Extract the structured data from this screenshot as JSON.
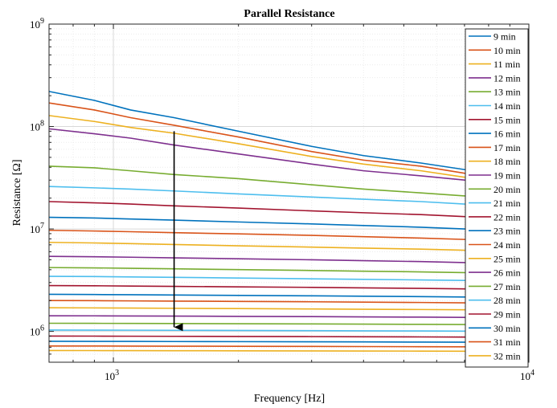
{
  "chart_data": {
    "type": "line",
    "title": "Parallel Resistance",
    "xlabel": "Frequency [Hz]",
    "ylabel": "Resistance [Ω]",
    "x_scale": "log",
    "y_scale": "log",
    "xlim": [
      700,
      10000
    ],
    "ylim": [
      500000,
      1000000000
    ],
    "grid": true,
    "legend_position": "right",
    "x_ticks": [
      {
        "value": 1000,
        "base": "10",
        "exp": "3"
      },
      {
        "value": 10000,
        "base": "10",
        "exp": "4"
      }
    ],
    "y_ticks": [
      {
        "value": 1000000,
        "base": "10",
        "exp": "6"
      },
      {
        "value": 10000000,
        "base": "10",
        "exp": "7"
      },
      {
        "value": 100000000,
        "base": "10",
        "exp": "8"
      },
      {
        "value": 1000000000,
        "base": "10",
        "exp": "9"
      }
    ],
    "x": [
      700,
      900,
      1100,
      1400,
      2000,
      3000,
      4000,
      5500,
      7000,
      10000
    ],
    "series": [
      {
        "name": "9 min",
        "color": "#0072BD",
        "values": [
          220000000,
          180000000,
          145000000,
          122000000,
          90000000,
          64000000,
          52000000,
          44000000,
          38000000,
          32000000
        ]
      },
      {
        "name": "10 min",
        "color": "#D95319",
        "values": [
          170000000,
          145000000,
          122000000,
          103000000,
          79000000,
          57000000,
          47000000,
          41000000,
          35000000,
          30000000
        ]
      },
      {
        "name": "11 min",
        "color": "#EDB120",
        "values": [
          128000000,
          112000000,
          98000000,
          86000000,
          68000000,
          51000000,
          43000000,
          37000000,
          32000000,
          28000000
        ]
      },
      {
        "name": "12 min",
        "color": "#7E2F8E",
        "values": [
          95000000,
          85000000,
          77000000,
          66000000,
          54000000,
          43000000,
          37000000,
          33000000,
          30000000,
          27000000
        ]
      },
      {
        "name": "13 min",
        "color": "#77AC30",
        "values": [
          41000000,
          39500000,
          37000000,
          34000000,
          31000000,
          27000000,
          24500000,
          22500000,
          21000000,
          19000000
        ]
      },
      {
        "name": "14 min",
        "color": "#4DBEEE",
        "values": [
          26000000,
          25200000,
          24500000,
          23500000,
          22000000,
          20500000,
          19500000,
          18500000,
          17500000,
          16500000
        ]
      },
      {
        "name": "15 min",
        "color": "#A2142F",
        "values": [
          18500000,
          18000000,
          17500000,
          16800000,
          16000000,
          15000000,
          14400000,
          13800000,
          13200000,
          12500000
        ]
      },
      {
        "name": "16 min",
        "color": "#0072BD",
        "values": [
          13000000,
          12800000,
          12500000,
          12200000,
          11700000,
          11200000,
          10800000,
          10400000,
          10000000,
          9600000
        ]
      },
      {
        "name": "17 min",
        "color": "#D95319",
        "values": [
          9700000,
          9550000,
          9400000,
          9200000,
          8950000,
          8650000,
          8400000,
          8150000,
          7900000,
          7600000
        ]
      },
      {
        "name": "18 min",
        "color": "#EDB120",
        "values": [
          7400000,
          7300000,
          7200000,
          7050000,
          6850000,
          6650000,
          6500000,
          6350000,
          6200000,
          6000000
        ]
      },
      {
        "name": "19 min",
        "color": "#7E2F8E",
        "values": [
          5400000,
          5350000,
          5300000,
          5220000,
          5120000,
          5000000,
          4900000,
          4800000,
          4700000,
          4550000
        ]
      },
      {
        "name": "20 min",
        "color": "#77AC30",
        "values": [
          4200000,
          4170000,
          4130000,
          4080000,
          4010000,
          3930000,
          3870000,
          3810000,
          3750000,
          3650000
        ]
      },
      {
        "name": "21 min",
        "color": "#4DBEEE",
        "values": [
          3450000,
          3430000,
          3400000,
          3370000,
          3320000,
          3260000,
          3220000,
          3180000,
          3140000,
          3080000
        ]
      },
      {
        "name": "22 min",
        "color": "#A2142F",
        "values": [
          2800000,
          2790000,
          2770000,
          2750000,
          2720000,
          2690000,
          2660000,
          2630000,
          2600000,
          2560000
        ]
      },
      {
        "name": "23 min",
        "color": "#0072BD",
        "values": [
          2300000,
          2290000,
          2280000,
          2265000,
          2245000,
          2225000,
          2205000,
          2185000,
          2165000,
          2140000
        ]
      },
      {
        "name": "24 min",
        "color": "#D95319",
        "values": [
          2000000,
          1995000,
          1985000,
          1975000,
          1960000,
          1945000,
          1930000,
          1915000,
          1900000,
          1880000
        ]
      },
      {
        "name": "25 min",
        "color": "#EDB120",
        "values": [
          1700000,
          1695000,
          1690000,
          1680000,
          1670000,
          1655000,
          1645000,
          1635000,
          1625000,
          1610000
        ]
      },
      {
        "name": "26 min",
        "color": "#7E2F8E",
        "values": [
          1420000,
          1418000,
          1414000,
          1410000,
          1402000,
          1394000,
          1386000,
          1378000,
          1370000,
          1360000
        ]
      },
      {
        "name": "27 min",
        "color": "#77AC30",
        "values": [
          1200000,
          1198000,
          1196000,
          1193000,
          1188000,
          1182000,
          1177000,
          1172000,
          1167000,
          1160000
        ]
      },
      {
        "name": "28 min",
        "color": "#4DBEEE",
        "values": [
          1030000,
          1029000,
          1027000,
          1025000,
          1021000,
          1017000,
          1013000,
          1009000,
          1005000,
          1000000
        ]
      },
      {
        "name": "29 min",
        "color": "#A2142F",
        "values": [
          900000,
          899000,
          897000,
          895000,
          892000,
          889000,
          886000,
          883000,
          880000,
          876000
        ]
      },
      {
        "name": "30 min",
        "color": "#0072BD",
        "values": [
          800000,
          799000,
          798000,
          796000,
          794000,
          791000,
          789000,
          786000,
          784000,
          780000
        ]
      },
      {
        "name": "31 min",
        "color": "#D95319",
        "values": [
          720000,
          719500,
          718500,
          717000,
          715000,
          713000,
          711000,
          709000,
          707000,
          704000
        ]
      },
      {
        "name": "32 min",
        "color": "#EDB120",
        "values": [
          650000,
          649500,
          649000,
          648000,
          646500,
          645000,
          643500,
          642000,
          640500,
          638000
        ]
      }
    ],
    "annotations": [
      {
        "type": "arrow",
        "x_start": 1400,
        "y_start": 90000000,
        "x_end": 1400,
        "y_end": 1100000,
        "color": "#000000"
      }
    ]
  }
}
